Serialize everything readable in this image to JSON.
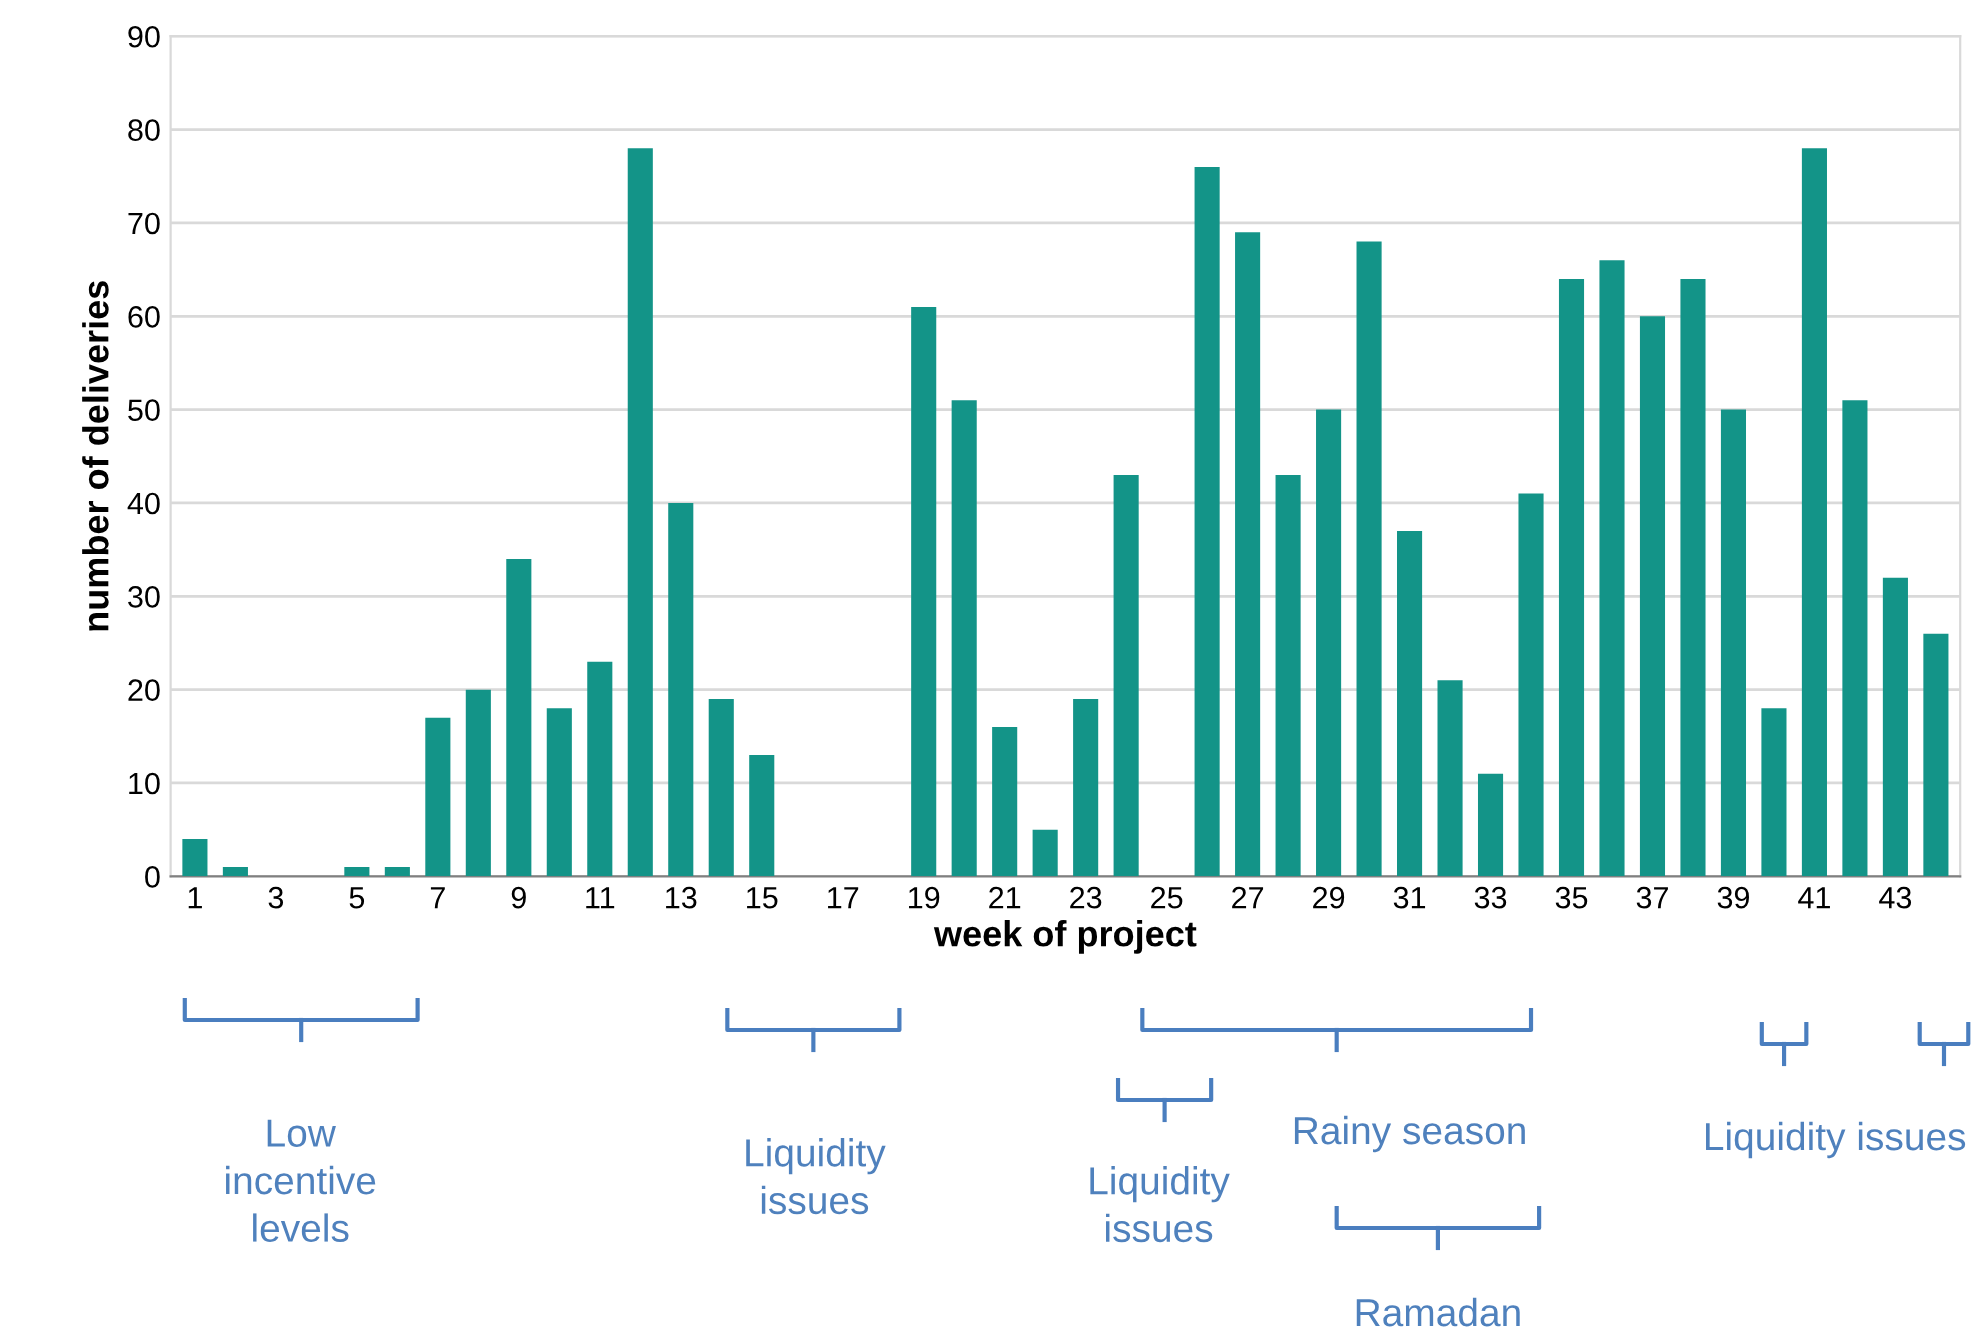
{
  "chart_data": {
    "type": "bar",
    "xlabel": "week of project",
    "ylabel": "number of deliveries",
    "categories": [
      "1",
      null,
      "3",
      null,
      "5",
      null,
      "7",
      null,
      "9",
      null,
      "11",
      null,
      "13",
      null,
      "15",
      null,
      "17",
      null,
      "19",
      null,
      "21",
      null,
      "23",
      null,
      "25",
      null,
      "27",
      null,
      "29",
      null,
      "31",
      null,
      "33",
      null,
      "35",
      null,
      "37",
      null,
      "39",
      null,
      "41",
      null,
      "43",
      null
    ],
    "values": [
      4,
      1,
      0,
      0,
      1,
      1,
      17,
      20,
      34,
      18,
      23,
      78,
      40,
      19,
      13,
      0,
      0,
      0,
      61,
      51,
      16,
      5,
      19,
      43,
      0,
      76,
      69,
      43,
      50,
      68,
      37,
      21,
      11,
      41,
      64,
      66,
      60,
      64,
      50,
      18,
      78,
      51,
      32,
      26
    ],
    "color": "#139488",
    "ylim": [
      0,
      90
    ],
    "yticks": [
      0,
      10,
      20,
      30,
      40,
      50,
      60,
      70,
      80,
      90
    ],
    "grid": "y",
    "annotations": [
      "Low\nincentive\nlevels",
      "Liquidity\nissues",
      "Liquidity\nissues",
      "Rainy season",
      "Ramadan",
      "Liquidity issues"
    ]
  }
}
